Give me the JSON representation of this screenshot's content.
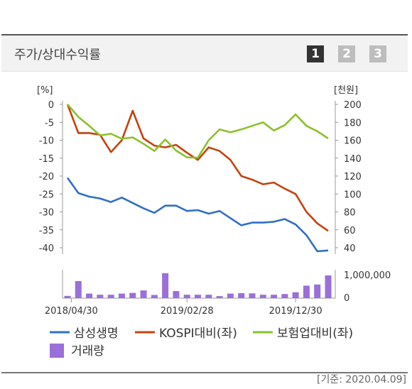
{
  "header": {
    "title": "주가/상대수익률",
    "pages": [
      "1",
      "2",
      "3"
    ],
    "active_page": "1"
  },
  "footnote": "[기준: 2020.04.09]",
  "chart_data": {
    "type": "line",
    "left_axis": {
      "unit_label": "[%]",
      "ticks": [
        "0",
        "-5",
        "-10",
        "-15",
        "-20",
        "-25",
        "-30",
        "-35",
        "-40"
      ],
      "range": [
        -40,
        0
      ]
    },
    "right_axis": {
      "unit_label": "[천원]",
      "ticks": [
        "200",
        "180",
        "160",
        "140",
        "120",
        "100",
        "80",
        "60",
        "40"
      ],
      "range": [
        40,
        200
      ]
    },
    "x_ticks": [
      "2018/04/30",
      "2019/02/28",
      "2019/12/30"
    ],
    "series": [
      {
        "name": "삼성생명",
        "axis": "right",
        "color": "#2f6fc7",
        "values": [
          118,
          101,
          97,
          95,
          91,
          96,
          90,
          84,
          79,
          87,
          87,
          81,
          82,
          78,
          81,
          73,
          65,
          68,
          68,
          69,
          72,
          66,
          54,
          36,
          37
        ]
      },
      {
        "name": "KOSPI대비(좌)",
        "axis": "left",
        "color": "#c4420d",
        "values": [
          0,
          -8,
          -8,
          -8.5,
          -13.3,
          -10,
          -1.8,
          -9.5,
          -11.5,
          -12,
          -11.3,
          -13.5,
          -15.5,
          -12,
          -13,
          -15.5,
          -20,
          -21,
          -22.3,
          -21.8,
          -23.5,
          -25,
          -30,
          -33.2,
          -35.3
        ]
      },
      {
        "name": "보험업대비(좌)",
        "axis": "left",
        "color": "#8ac22a",
        "values": [
          0,
          -3.5,
          -6,
          -8.7,
          -8.2,
          -9.6,
          -9.2,
          -11,
          -13,
          -9.8,
          -12.9,
          -14.8,
          -14.9,
          -10,
          -7,
          -7.8,
          -7,
          -6,
          -5,
          -7.3,
          -5.8,
          -2.8,
          -6,
          -7.5,
          -9.5
        ]
      }
    ],
    "volume": {
      "name": "거래량",
      "color": "#9b6fd9",
      "tick": "1,000,000",
      "tick_value": 1000000,
      "zero_label": "0",
      "values": [
        100000,
        750000,
        200000,
        150000,
        150000,
        200000,
        230000,
        340000,
        140000,
        1100000,
        310000,
        150000,
        150000,
        150000,
        90000,
        200000,
        220000,
        210000,
        150000,
        150000,
        180000,
        260000,
        550000,
        600000,
        1000000
      ]
    }
  }
}
